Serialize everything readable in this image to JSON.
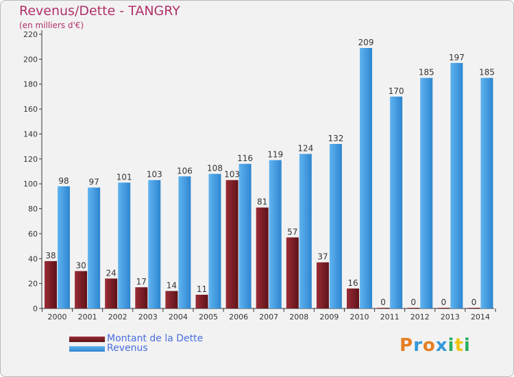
{
  "chart_data": {
    "type": "bar",
    "title": "Revenus/Dette - TANGRY",
    "subtitle": "(en milliers d'€)",
    "categories": [
      "2000",
      "2001",
      "2002",
      "2003",
      "2004",
      "2005",
      "2006",
      "2007",
      "2008",
      "2009",
      "2010",
      "2011",
      "2012",
      "2013",
      "2014"
    ],
    "series": [
      {
        "name": "Montant de la Dette",
        "color": "#7a1e26",
        "values": [
          38,
          30,
          24,
          17,
          14,
          11,
          103,
          81,
          57,
          37,
          16,
          0,
          0,
          0,
          0
        ]
      },
      {
        "name": "Revenus",
        "color": "#4aa3e8",
        "values": [
          98,
          97,
          101,
          103,
          106,
          108,
          116,
          119,
          124,
          132,
          209,
          170,
          185,
          197,
          185
        ]
      }
    ],
    "ylim": [
      0,
      220
    ],
    "yticks": [
      0,
      20,
      40,
      60,
      80,
      100,
      120,
      140,
      160,
      180,
      200,
      220
    ],
    "grid": false,
    "legend_position": "bottom-left"
  },
  "legend": {
    "debt_label": "Montant de la Dette",
    "revenue_label": "Revenus"
  },
  "logo": {
    "text": "Proxiti",
    "colors": [
      "#e67e22",
      "#3498db",
      "#27ae60",
      "#f1c40f"
    ]
  }
}
